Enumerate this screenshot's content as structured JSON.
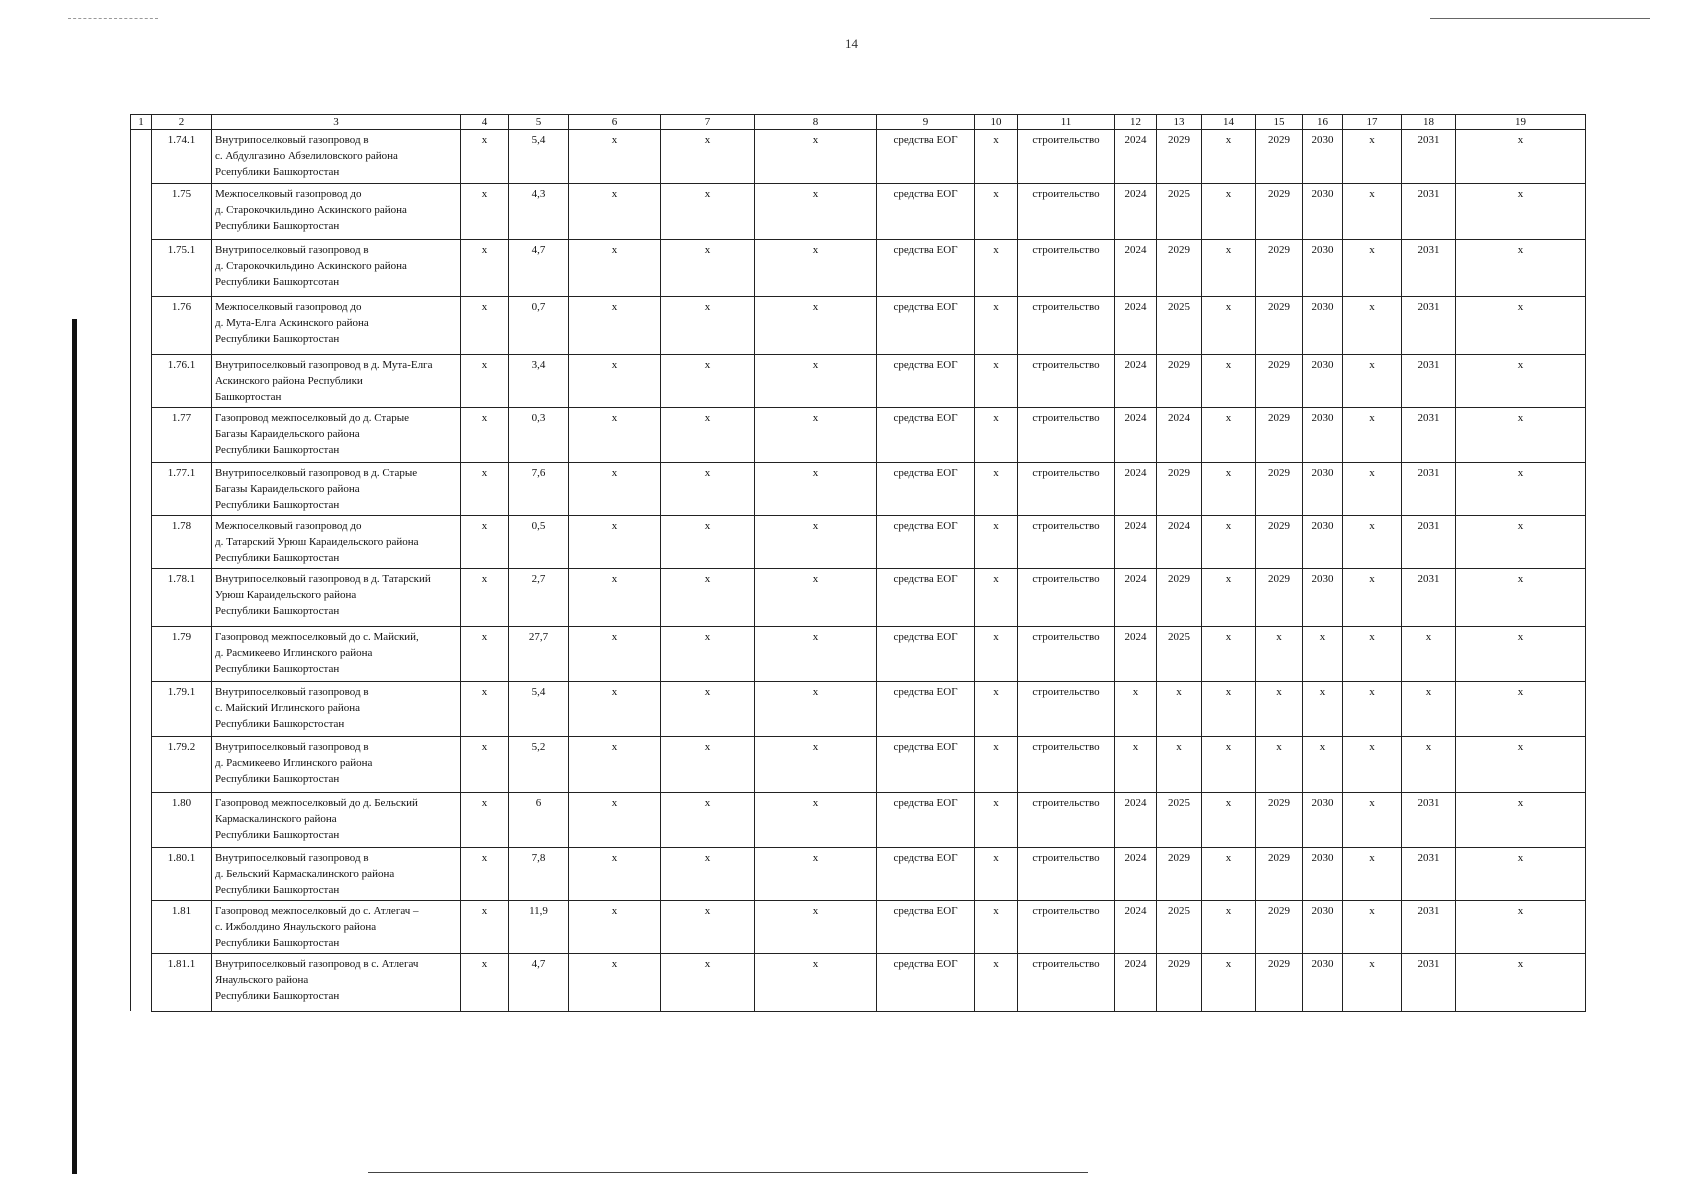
{
  "page_number": "14",
  "table": {
    "header": [
      "1",
      "2",
      "3",
      "4",
      "5",
      "6",
      "7",
      "8",
      "9",
      "10",
      "11",
      "12",
      "13",
      "14",
      "15",
      "16",
      "17",
      "18",
      "19"
    ],
    "rows": [
      [
        "1.74.1",
        "Внутрипоселковый газопровод в\nс. Абдулгазино Абзелиловского района\nРсепублики Башкортостан",
        "x",
        "5,4",
        "x",
        "x",
        "x",
        "средства ЕОГ",
        "x",
        "строительство",
        "2024",
        "2029",
        "x",
        "2029",
        "2030",
        "x",
        "2031",
        "x"
      ],
      [
        "1.75",
        "Межпоселковый газопровод до\nд. Старокочкильдино Аскинского района\nРеспублики Башкортостан",
        "x",
        "4,3",
        "x",
        "x",
        "x",
        "средства ЕОГ",
        "x",
        "строительство",
        "2024",
        "2025",
        "x",
        "2029",
        "2030",
        "x",
        "2031",
        "x"
      ],
      [
        "1.75.1",
        "Внутрипоселковый газопровод в\nд. Старокочкильдино Аскинского района\nРеспублики Башкортсотан",
        "x",
        "4,7",
        "x",
        "x",
        "x",
        "средства ЕОГ",
        "x",
        "строительство",
        "2024",
        "2029",
        "x",
        "2029",
        "2030",
        "x",
        "2031",
        "x"
      ],
      [
        "1.76",
        "Межпоселковый газопровод до\nд. Мута-Елга Аскинского района\nРеспублики Башкортостан",
        "x",
        "0,7",
        "x",
        "x",
        "x",
        "средства ЕОГ",
        "x",
        "строительство",
        "2024",
        "2025",
        "x",
        "2029",
        "2030",
        "x",
        "2031",
        "x"
      ],
      [
        "1.76.1",
        "Внутрипоселковый газопровод в д. Мута-Елга\nАскинского района Республики\nБашкортостан",
        "x",
        "3,4",
        "x",
        "x",
        "x",
        "средства ЕОГ",
        "x",
        "строительство",
        "2024",
        "2029",
        "x",
        "2029",
        "2030",
        "x",
        "2031",
        "x"
      ],
      [
        "1.77",
        "Газопровод межпоселковый до д. Старые\nБагазы Караидельского района\nРеспублики Башкортостан",
        "x",
        "0,3",
        "x",
        "x",
        "x",
        "средства ЕОГ",
        "x",
        "строительство",
        "2024",
        "2024",
        "x",
        "2029",
        "2030",
        "x",
        "2031",
        "x"
      ],
      [
        "1.77.1",
        "Внутрипоселковый газопровод в д. Старые\nБагазы Караидельского района\nРеспублики Башкортостан",
        "x",
        "7,6",
        "x",
        "x",
        "x",
        "средства ЕОГ",
        "x",
        "строительство",
        "2024",
        "2029",
        "x",
        "2029",
        "2030",
        "x",
        "2031",
        "x"
      ],
      [
        "1.78",
        "Межпоселковый газопровод до\nд. Татарский Урюш Караидельского района\nРеспублики Башкортостан",
        "x",
        "0,5",
        "x",
        "x",
        "x",
        "средства ЕОГ",
        "x",
        "строительство",
        "2024",
        "2024",
        "x",
        "2029",
        "2030",
        "x",
        "2031",
        "x"
      ],
      [
        "1.78.1",
        "Внутрипоселковый газопровод в д. Татарский\nУрюш Караидельского района\nРеспублики Башкортостан",
        "x",
        "2,7",
        "x",
        "x",
        "x",
        "средства ЕОГ",
        "x",
        "строительство",
        "2024",
        "2029",
        "x",
        "2029",
        "2030",
        "x",
        "2031",
        "x"
      ],
      [
        "1.79",
        "Газопровод межпоселковый до с. Майский,\nд. Расмикеево Иглинского района\nРеспублики Башкортостан",
        "x",
        "27,7",
        "x",
        "x",
        "x",
        "средства ЕОГ",
        "x",
        "строительство",
        "2024",
        "2025",
        "x",
        "x",
        "x",
        "x",
        "x",
        "x"
      ],
      [
        "1.79.1",
        "Внутрипоселковый газопровод в\nс. Майский Иглинского района\nРеспублики Башкорстостан",
        "x",
        "5,4",
        "x",
        "x",
        "x",
        "средства ЕОГ",
        "x",
        "строительство",
        "x",
        "x",
        "x",
        "x",
        "x",
        "x",
        "x",
        "x"
      ],
      [
        "1.79.2",
        "Внутрипоселковый газопровод в\nд. Расмикеево Иглинского района\nРеспублики Башкортостан",
        "x",
        "5,2",
        "x",
        "x",
        "x",
        "средства ЕОГ",
        "x",
        "строительство",
        "x",
        "x",
        "x",
        "x",
        "x",
        "x",
        "x",
        "x"
      ],
      [
        "1.80",
        "Газопровод межпоселковый до д. Бельский\nКармаскалинского района\nРеспублики Башкортостан",
        "x",
        "6",
        "x",
        "x",
        "x",
        "средства ЕОГ",
        "x",
        "строительство",
        "2024",
        "2025",
        "x",
        "2029",
        "2030",
        "x",
        "2031",
        "x"
      ],
      [
        "1.80.1",
        "Внутрипоселковый газопровод в\nд. Бельский Кармаскалинского района\nРеспублики Башкортостан",
        "x",
        "7,8",
        "x",
        "x",
        "x",
        "средства ЕОГ",
        "x",
        "строительство",
        "2024",
        "2029",
        "x",
        "2029",
        "2030",
        "x",
        "2031",
        "x"
      ],
      [
        "1.81",
        "Газопровод межпоселковый до с. Атлегач –\nс. Ижболдино Янаульского района\nРеспублики Башкортостан",
        "x",
        "11,9",
        "x",
        "x",
        "x",
        "средства ЕОГ",
        "x",
        "строительство",
        "2024",
        "2025",
        "x",
        "2029",
        "2030",
        "x",
        "2031",
        "x"
      ],
      [
        "1.81.1",
        "Внутрипоселковый газопровод в с. Атлегач\nЯнаульского района\nРеспублики Башкортостан",
        "x",
        "4,7",
        "x",
        "x",
        "x",
        "средства ЕОГ",
        "x",
        "строительство",
        "2024",
        "2029",
        "x",
        "2029",
        "2030",
        "x",
        "2031",
        "x"
      ]
    ]
  }
}
